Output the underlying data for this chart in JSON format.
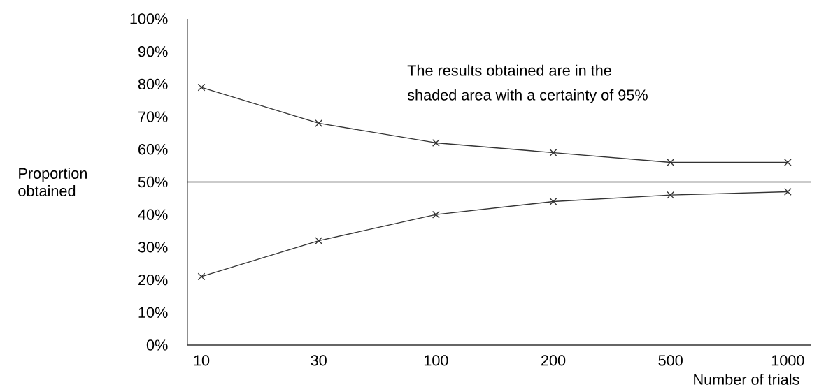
{
  "chart_data": {
    "type": "line",
    "xlabel": "Number of trials",
    "ylabel": "Proportion obtained",
    "annotations": [
      "The results obtained are in the",
      "shaded area with a certainty of 95%"
    ],
    "categories": [
      "10",
      "30",
      "100",
      "200",
      "500",
      "1000"
    ],
    "series": [
      {
        "color": "#333333",
        "values": [
          79,
          68,
          62,
          59,
          56,
          56
        ]
      },
      {
        "color": "#333333",
        "values": [
          21,
          32,
          40,
          44,
          46,
          47
        ]
      }
    ],
    "ylim": [
      0,
      100
    ],
    "yticks": [
      {
        "value": 0,
        "label": "0%"
      },
      {
        "value": 10,
        "label": "10%"
      },
      {
        "value": 20,
        "label": "20%"
      },
      {
        "value": 30,
        "label": "30%"
      },
      {
        "value": 40,
        "label": "40%"
      },
      {
        "value": 50,
        "label": "50%"
      },
      {
        "value": 60,
        "label": "60%"
      },
      {
        "value": 70,
        "label": "70%"
      },
      {
        "value": 80,
        "label": "80%"
      },
      {
        "value": 90,
        "label": "90%"
      },
      {
        "value": 100,
        "label": "100%"
      }
    ],
    "ref_lines": [
      {
        "axis": "y",
        "value": 50,
        "color": "#333333"
      }
    ],
    "marker": "cross",
    "line_style": "solid",
    "grid": false
  }
}
